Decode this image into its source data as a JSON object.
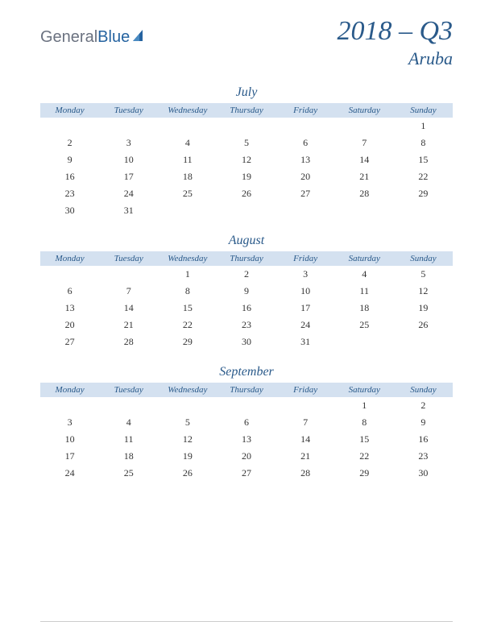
{
  "logo": {
    "text_general": "General",
    "text_blue": "Blue"
  },
  "header": {
    "quarter": "2018 – Q3",
    "location": "Aruba"
  },
  "day_headers": [
    "Monday",
    "Tuesday",
    "Wednesday",
    "Thursday",
    "Friday",
    "Saturday",
    "Sunday"
  ],
  "months": [
    {
      "name": "July",
      "weeks": [
        [
          "",
          "",
          "",
          "",
          "",
          "",
          "1"
        ],
        [
          "2",
          "3",
          "4",
          "5",
          "6",
          "7",
          "8"
        ],
        [
          "9",
          "10",
          "11",
          "12",
          "13",
          "14",
          "15"
        ],
        [
          "16",
          "17",
          "18",
          "19",
          "20",
          "21",
          "22"
        ],
        [
          "23",
          "24",
          "25",
          "26",
          "27",
          "28",
          "29"
        ],
        [
          "30",
          "31",
          "",
          "",
          "",
          "",
          ""
        ]
      ]
    },
    {
      "name": "August",
      "weeks": [
        [
          "",
          "",
          "1",
          "2",
          "3",
          "4",
          "5"
        ],
        [
          "6",
          "7",
          "8",
          "9",
          "10",
          "11",
          "12"
        ],
        [
          "13",
          "14",
          "15",
          "16",
          "17",
          "18",
          "19"
        ],
        [
          "20",
          "21",
          "22",
          "23",
          "24",
          "25",
          "26"
        ],
        [
          "27",
          "28",
          "29",
          "30",
          "31",
          "",
          ""
        ]
      ]
    },
    {
      "name": "September",
      "weeks": [
        [
          "",
          "",
          "",
          "",
          "",
          "1",
          "2"
        ],
        [
          "3",
          "4",
          "5",
          "6",
          "7",
          "8",
          "9"
        ],
        [
          "10",
          "11",
          "12",
          "13",
          "14",
          "15",
          "16"
        ],
        [
          "17",
          "18",
          "19",
          "20",
          "21",
          "22",
          "23"
        ],
        [
          "24",
          "25",
          "26",
          "27",
          "28",
          "29",
          "30"
        ]
      ]
    }
  ],
  "colors": {
    "header_bg": "#d4e1f0",
    "title_color": "#2a5a8a",
    "text_color": "#333333",
    "logo_gray": "#6b7280",
    "logo_blue": "#2563a0"
  }
}
